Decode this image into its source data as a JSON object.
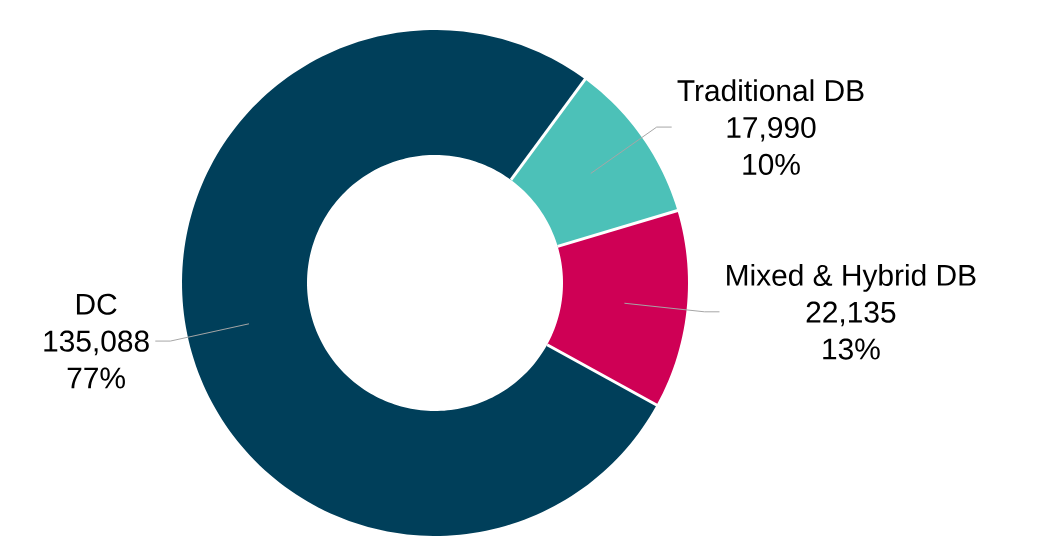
{
  "chart_data": {
    "type": "donut",
    "categories": [
      "Traditional DB",
      "Mixed & Hybrid DB",
      "DC"
    ],
    "values": [
      17990,
      22135,
      135088
    ],
    "colors": [
      "#4cc1b8",
      "#cf0055",
      "#003f5a"
    ],
    "value_labels": [
      "17,990",
      "22,135",
      "135,088"
    ],
    "annotations": [
      "10%",
      "13%",
      "77%"
    ]
  }
}
